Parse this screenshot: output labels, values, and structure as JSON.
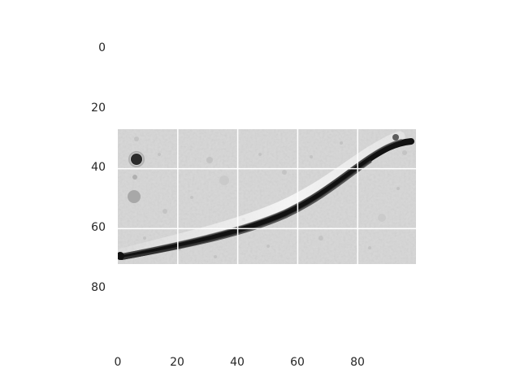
{
  "figure": {
    "image_description_kind": "grayscale microscope image",
    "axes": {
      "x_ticks": [
        "0",
        "20",
        "40",
        "60",
        "80"
      ],
      "y_ticks": [
        "0",
        "20",
        "40",
        "60",
        "80"
      ],
      "x_range": [
        0,
        100
      ],
      "y_range": [
        0,
        100
      ],
      "grid": true
    },
    "colors": {
      "background": "#ffffff",
      "image_base": "#d9d9d9",
      "filament": "#111111",
      "grid": "#ffffff",
      "tick_text": "#262626"
    }
  }
}
